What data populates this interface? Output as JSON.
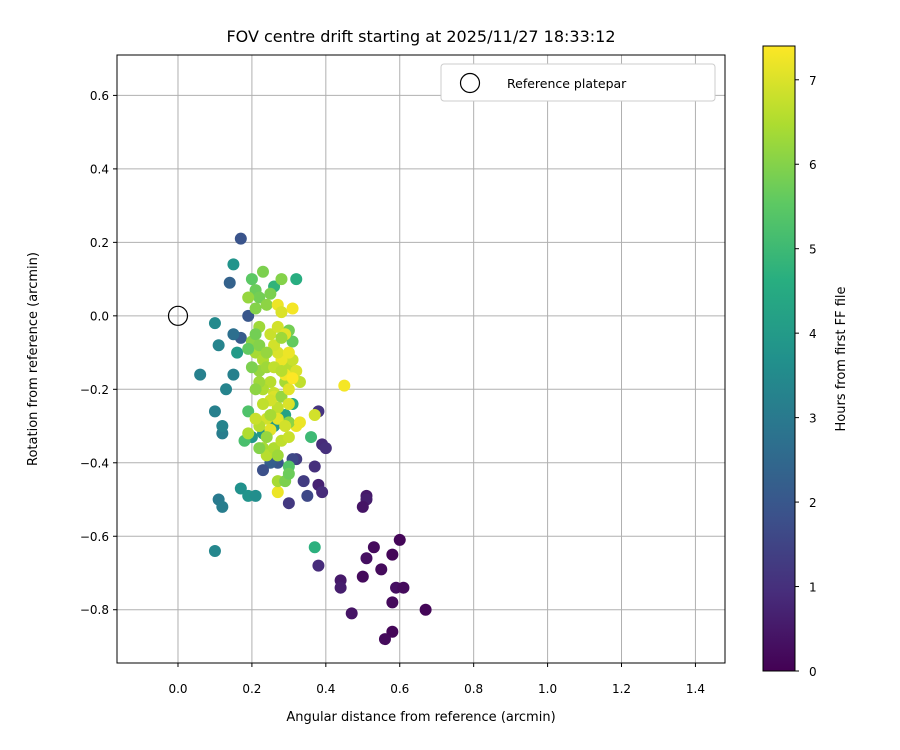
{
  "chart_data": {
    "type": "scatter",
    "title": "FOV centre drift starting at 2025/11/27 18:33:12",
    "xlabel": "Angular distance from reference (arcmin)",
    "ylabel": "Rotation from reference (arcmin)",
    "xlim": [
      -0.165,
      1.48
    ],
    "ylim": [
      -0.945,
      0.71
    ],
    "xticks": [
      0.0,
      0.2,
      0.4,
      0.6,
      0.8,
      1.0,
      1.2,
      1.4
    ],
    "yticks": [
      0.6,
      0.4,
      0.2,
      0.0,
      -0.2,
      -0.4,
      -0.6,
      -0.8
    ],
    "grid": true,
    "legend": {
      "placement": "top-right",
      "entries": [
        "Reference platepar"
      ]
    },
    "reference_point": {
      "x": 0.0,
      "y": 0.0,
      "label": "Reference platepar"
    },
    "colorbar": {
      "label": "Hours from first FF file",
      "colormap": "viridis",
      "range": [
        0,
        7.4
      ],
      "ticks": [
        0,
        1,
        2,
        3,
        4,
        5,
        6,
        7
      ]
    },
    "points": [
      [
        0.6,
        -0.61,
        0.1
      ],
      [
        0.58,
        -0.65,
        0.1
      ],
      [
        0.53,
        -0.63,
        0.2
      ],
      [
        0.51,
        -0.66,
        0.3
      ],
      [
        0.55,
        -0.69,
        0.2
      ],
      [
        0.5,
        -0.71,
        0.2
      ],
      [
        0.44,
        -0.72,
        0.5
      ],
      [
        0.44,
        -0.74,
        0.6
      ],
      [
        0.59,
        -0.74,
        0.3
      ],
      [
        0.61,
        -0.74,
        0.2
      ],
      [
        0.58,
        -0.78,
        0.2
      ],
      [
        0.67,
        -0.8,
        0.1
      ],
      [
        0.47,
        -0.81,
        0.4
      ],
      [
        0.58,
        -0.86,
        0.1
      ],
      [
        0.56,
        -0.88,
        0.2
      ],
      [
        0.51,
        -0.49,
        0.5
      ],
      [
        0.51,
        -0.5,
        0.6
      ],
      [
        0.5,
        -0.52,
        0.4
      ],
      [
        0.38,
        -0.46,
        0.7
      ],
      [
        0.39,
        -0.48,
        0.9
      ],
      [
        0.38,
        -0.68,
        0.9
      ],
      [
        0.37,
        -0.41,
        1.0
      ],
      [
        0.34,
        -0.45,
        1.3
      ],
      [
        0.35,
        -0.49,
        1.6
      ],
      [
        0.3,
        -0.51,
        1.2
      ],
      [
        0.39,
        -0.35,
        0.9
      ],
      [
        0.4,
        -0.36,
        1.0
      ],
      [
        0.38,
        -0.26,
        1.1
      ],
      [
        0.32,
        -0.39,
        1.3
      ],
      [
        0.31,
        -0.39,
        1.6
      ],
      [
        0.27,
        -0.4,
        2.0
      ],
      [
        0.25,
        -0.4,
        2.2
      ],
      [
        0.23,
        -0.42,
        1.8
      ],
      [
        0.17,
        0.21,
        1.9
      ],
      [
        0.14,
        0.09,
        2.3
      ],
      [
        0.17,
        -0.06,
        2.1
      ],
      [
        0.19,
        0.0,
        2.0
      ],
      [
        0.15,
        -0.05,
        2.7
      ],
      [
        0.15,
        -0.16,
        3.2
      ],
      [
        0.13,
        -0.2,
        3.3
      ],
      [
        0.12,
        -0.32,
        3.1
      ],
      [
        0.12,
        -0.3,
        3.3
      ],
      [
        0.1,
        -0.26,
        3.2
      ],
      [
        0.11,
        -0.08,
        3.3
      ],
      [
        0.1,
        -0.02,
        3.5
      ],
      [
        0.06,
        -0.16,
        3.2
      ],
      [
        0.11,
        -0.5,
        3.0
      ],
      [
        0.12,
        -0.52,
        3.1
      ],
      [
        0.1,
        -0.64,
        3.4
      ],
      [
        0.17,
        -0.47,
        3.7
      ],
      [
        0.19,
        -0.49,
        3.8
      ],
      [
        0.21,
        -0.49,
        3.6
      ],
      [
        0.15,
        0.14,
        3.8
      ],
      [
        0.16,
        -0.1,
        4.0
      ],
      [
        0.2,
        -0.33,
        3.9
      ],
      [
        0.23,
        -0.32,
        3.9
      ],
      [
        0.26,
        -0.3,
        4.0
      ],
      [
        0.29,
        -0.27,
        4.2
      ],
      [
        0.31,
        -0.24,
        4.5
      ],
      [
        0.32,
        0.1,
        4.6
      ],
      [
        0.26,
        0.08,
        4.8
      ],
      [
        0.36,
        -0.33,
        5.0
      ],
      [
        0.37,
        -0.63,
        4.7
      ],
      [
        0.18,
        -0.34,
        5.2
      ],
      [
        0.19,
        -0.26,
        5.3
      ],
      [
        0.2,
        0.1,
        5.5
      ],
      [
        0.21,
        0.07,
        5.7
      ],
      [
        0.22,
        0.05,
        5.8
      ],
      [
        0.23,
        0.12,
        5.9
      ],
      [
        0.19,
        0.05,
        6.2
      ],
      [
        0.21,
        0.02,
        6.0
      ],
      [
        0.25,
        0.06,
        5.9
      ],
      [
        0.24,
        0.03,
        6.1
      ],
      [
        0.28,
        0.1,
        6.0
      ],
      [
        0.3,
        -0.04,
        5.8
      ],
      [
        0.31,
        -0.07,
        5.6
      ],
      [
        0.2,
        -0.07,
        6.1
      ],
      [
        0.22,
        -0.03,
        6.3
      ],
      [
        0.21,
        -0.1,
        6.4
      ],
      [
        0.23,
        -0.12,
        6.5
      ],
      [
        0.22,
        -0.15,
        6.2
      ],
      [
        0.24,
        -0.14,
        6.3
      ],
      [
        0.25,
        -0.18,
        6.6
      ],
      [
        0.23,
        -0.2,
        6.5
      ],
      [
        0.26,
        -0.21,
        6.8
      ],
      [
        0.27,
        -0.25,
        6.7
      ],
      [
        0.26,
        -0.22,
        7.0
      ],
      [
        0.24,
        -0.28,
        6.9
      ],
      [
        0.25,
        -0.31,
        7.1
      ],
      [
        0.22,
        -0.3,
        6.6
      ],
      [
        0.21,
        -0.28,
        6.8
      ],
      [
        0.23,
        -0.36,
        6.4
      ],
      [
        0.24,
        -0.38,
        6.6
      ],
      [
        0.26,
        -0.36,
        6.5
      ],
      [
        0.28,
        -0.34,
        6.7
      ],
      [
        0.3,
        -0.33,
        6.8
      ],
      [
        0.32,
        -0.3,
        7.2
      ],
      [
        0.3,
        -0.29,
        6.1
      ],
      [
        0.28,
        -0.22,
        6.2
      ],
      [
        0.29,
        -0.18,
        6.4
      ],
      [
        0.3,
        -0.14,
        6.6
      ],
      [
        0.31,
        -0.12,
        6.8
      ],
      [
        0.32,
        -0.15,
        7.0
      ],
      [
        0.33,
        -0.18,
        6.7
      ],
      [
        0.3,
        -0.2,
        7.1
      ],
      [
        0.29,
        -0.16,
        7.3
      ],
      [
        0.28,
        -0.12,
        7.2
      ],
      [
        0.27,
        -0.1,
        7.0
      ],
      [
        0.26,
        -0.08,
        6.9
      ],
      [
        0.25,
        -0.05,
        6.8
      ],
      [
        0.27,
        -0.03,
        6.9
      ],
      [
        0.29,
        -0.05,
        7.1
      ],
      [
        0.27,
        0.03,
        7.2
      ],
      [
        0.28,
        0.01,
        7.0
      ],
      [
        0.31,
        0.02,
        7.3
      ],
      [
        0.3,
        -0.1,
        7.2
      ],
      [
        0.31,
        -0.17,
        7.4
      ],
      [
        0.3,
        -0.24,
        7.0
      ],
      [
        0.37,
        -0.27,
        6.9
      ],
      [
        0.45,
        -0.19,
        7.3
      ],
      [
        0.27,
        -0.48,
        7.2
      ],
      [
        0.27,
        -0.45,
        6.4
      ],
      [
        0.29,
        -0.45,
        5.9
      ],
      [
        0.3,
        -0.41,
        5.4
      ],
      [
        0.3,
        -0.43,
        5.7
      ],
      [
        0.19,
        -0.32,
        6.5
      ],
      [
        0.2,
        -0.14,
        5.9
      ],
      [
        0.19,
        -0.09,
        5.6
      ],
      [
        0.21,
        -0.05,
        5.8
      ],
      [
        0.22,
        -0.08,
        6.0
      ],
      [
        0.24,
        -0.1,
        6.2
      ],
      [
        0.25,
        -0.23,
        6.9
      ],
      [
        0.27,
        -0.28,
        7.1
      ],
      [
        0.29,
        -0.3,
        6.9
      ],
      [
        0.33,
        -0.29,
        7.2
      ],
      [
        0.23,
        -0.24,
        6.7
      ],
      [
        0.22,
        -0.18,
        6.3
      ],
      [
        0.21,
        -0.2,
        6.1
      ],
      [
        0.28,
        -0.06,
        6.3
      ],
      [
        0.26,
        -0.14,
        6.7
      ],
      [
        0.24,
        -0.33,
        6.2
      ],
      [
        0.22,
        -0.36,
        6.0
      ],
      [
        0.27,
        -0.38,
        6.3
      ],
      [
        0.25,
        -0.27,
        6.4
      ],
      [
        0.28,
        -0.15,
        6.6
      ]
    ]
  }
}
